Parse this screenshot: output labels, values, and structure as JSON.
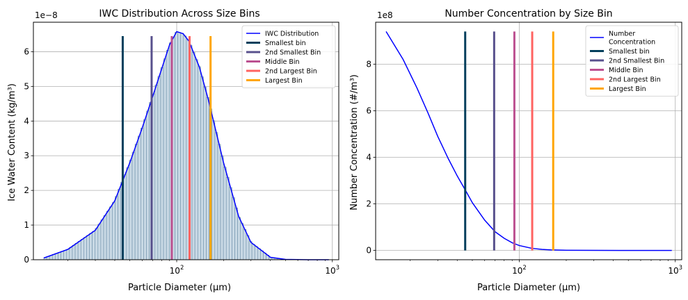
{
  "chart_data": [
    {
      "type": "line",
      "title": "IWC Distribution Across Size Bins",
      "xlabel": "Particle Diameter (μm)",
      "ylabel": "Ice Water Content (kg/m³)",
      "y_offset_label": "1e−8",
      "xscale": "log",
      "xlim": [
        12,
        1100
      ],
      "ylim": [
        0,
        6.85
      ],
      "x_ticks": [
        {
          "value": 100,
          "base": "10",
          "exp": "2"
        },
        {
          "value": 1000,
          "base": "10",
          "exp": "3"
        }
      ],
      "y_ticks": [
        0,
        1,
        2,
        3,
        4,
        5,
        6
      ],
      "grid": true,
      "legend_position": "top-right",
      "histogram": {
        "x_min": 14,
        "x_max": 950,
        "bins": 100,
        "color": "#c9d9e5",
        "edge": "#6e90a9"
      },
      "series": [
        {
          "name": "IWC Distribution",
          "color": "#0000ff",
          "x": [
            14,
            20,
            30,
            40,
            50,
            60,
            70,
            80,
            90,
            100,
            110,
            120,
            140,
            160,
            180,
            200,
            250,
            300,
            400,
            500,
            700,
            950
          ],
          "y": [
            0.05,
            0.3,
            0.85,
            1.7,
            2.8,
            3.8,
            4.7,
            5.5,
            6.2,
            6.58,
            6.52,
            6.3,
            5.55,
            4.6,
            3.65,
            2.8,
            1.25,
            0.5,
            0.07,
            0.01,
            0.001,
            0.0
          ]
        }
      ],
      "markers": [
        {
          "name": "Smallest bin",
          "x": 45,
          "y_top": 6.45,
          "color": "#003f5c"
        },
        {
          "name": "2nd Smallest Bin",
          "x": 69,
          "y_top": 6.45,
          "color": "#58508d"
        },
        {
          "name": "Middle Bin",
          "x": 93,
          "y_top": 6.45,
          "color": "#bc5090"
        },
        {
          "name": "2nd Largest Bin",
          "x": 121,
          "y_top": 6.45,
          "color": "#ff6361"
        },
        {
          "name": "Largest Bin",
          "x": 165,
          "y_top": 6.45,
          "color": "#ffa600"
        }
      ]
    },
    {
      "type": "line",
      "title": "Number Concentration by Size Bin",
      "xlabel": "Particle Diameter (μm)",
      "ylabel": "Number Concentration (#/m³)",
      "y_offset_label": "1e8",
      "xscale": "log",
      "xlim": [
        12,
        1100
      ],
      "ylim": [
        -0.4,
        9.8
      ],
      "x_ticks": [
        {
          "value": 100,
          "base": "10",
          "exp": "2"
        },
        {
          "value": 1000,
          "base": "10",
          "exp": "3"
        }
      ],
      "y_ticks": [
        0,
        2,
        4,
        6,
        8
      ],
      "grid": true,
      "legend_position": "top-right",
      "series": [
        {
          "name": "Number\nConcentration",
          "color": "#0000ff",
          "x": [
            14,
            18,
            22,
            26,
            30,
            35,
            40,
            45,
            50,
            60,
            70,
            80,
            90,
            100,
            120,
            140,
            160,
            200,
            300,
            500,
            950
          ],
          "y": [
            9.4,
            8.2,
            7.0,
            5.9,
            4.9,
            3.95,
            3.2,
            2.6,
            2.05,
            1.3,
            0.8,
            0.52,
            0.33,
            0.21,
            0.09,
            0.045,
            0.022,
            0.006,
            0.001,
            0.0,
            0.0
          ]
        }
      ],
      "markers": [
        {
          "name": "Smallest bin",
          "x": 45,
          "y_top": 9.4,
          "color": "#003f5c"
        },
        {
          "name": "2nd Smallest Bin",
          "x": 69,
          "y_top": 9.4,
          "color": "#58508d"
        },
        {
          "name": "Middle Bin",
          "x": 93,
          "y_top": 9.4,
          "color": "#bc5090"
        },
        {
          "name": "2nd Largest Bin",
          "x": 121,
          "y_top": 9.4,
          "color": "#ff6361"
        },
        {
          "name": "Largest Bin",
          "x": 165,
          "y_top": 9.4,
          "color": "#ffa600"
        }
      ]
    }
  ]
}
